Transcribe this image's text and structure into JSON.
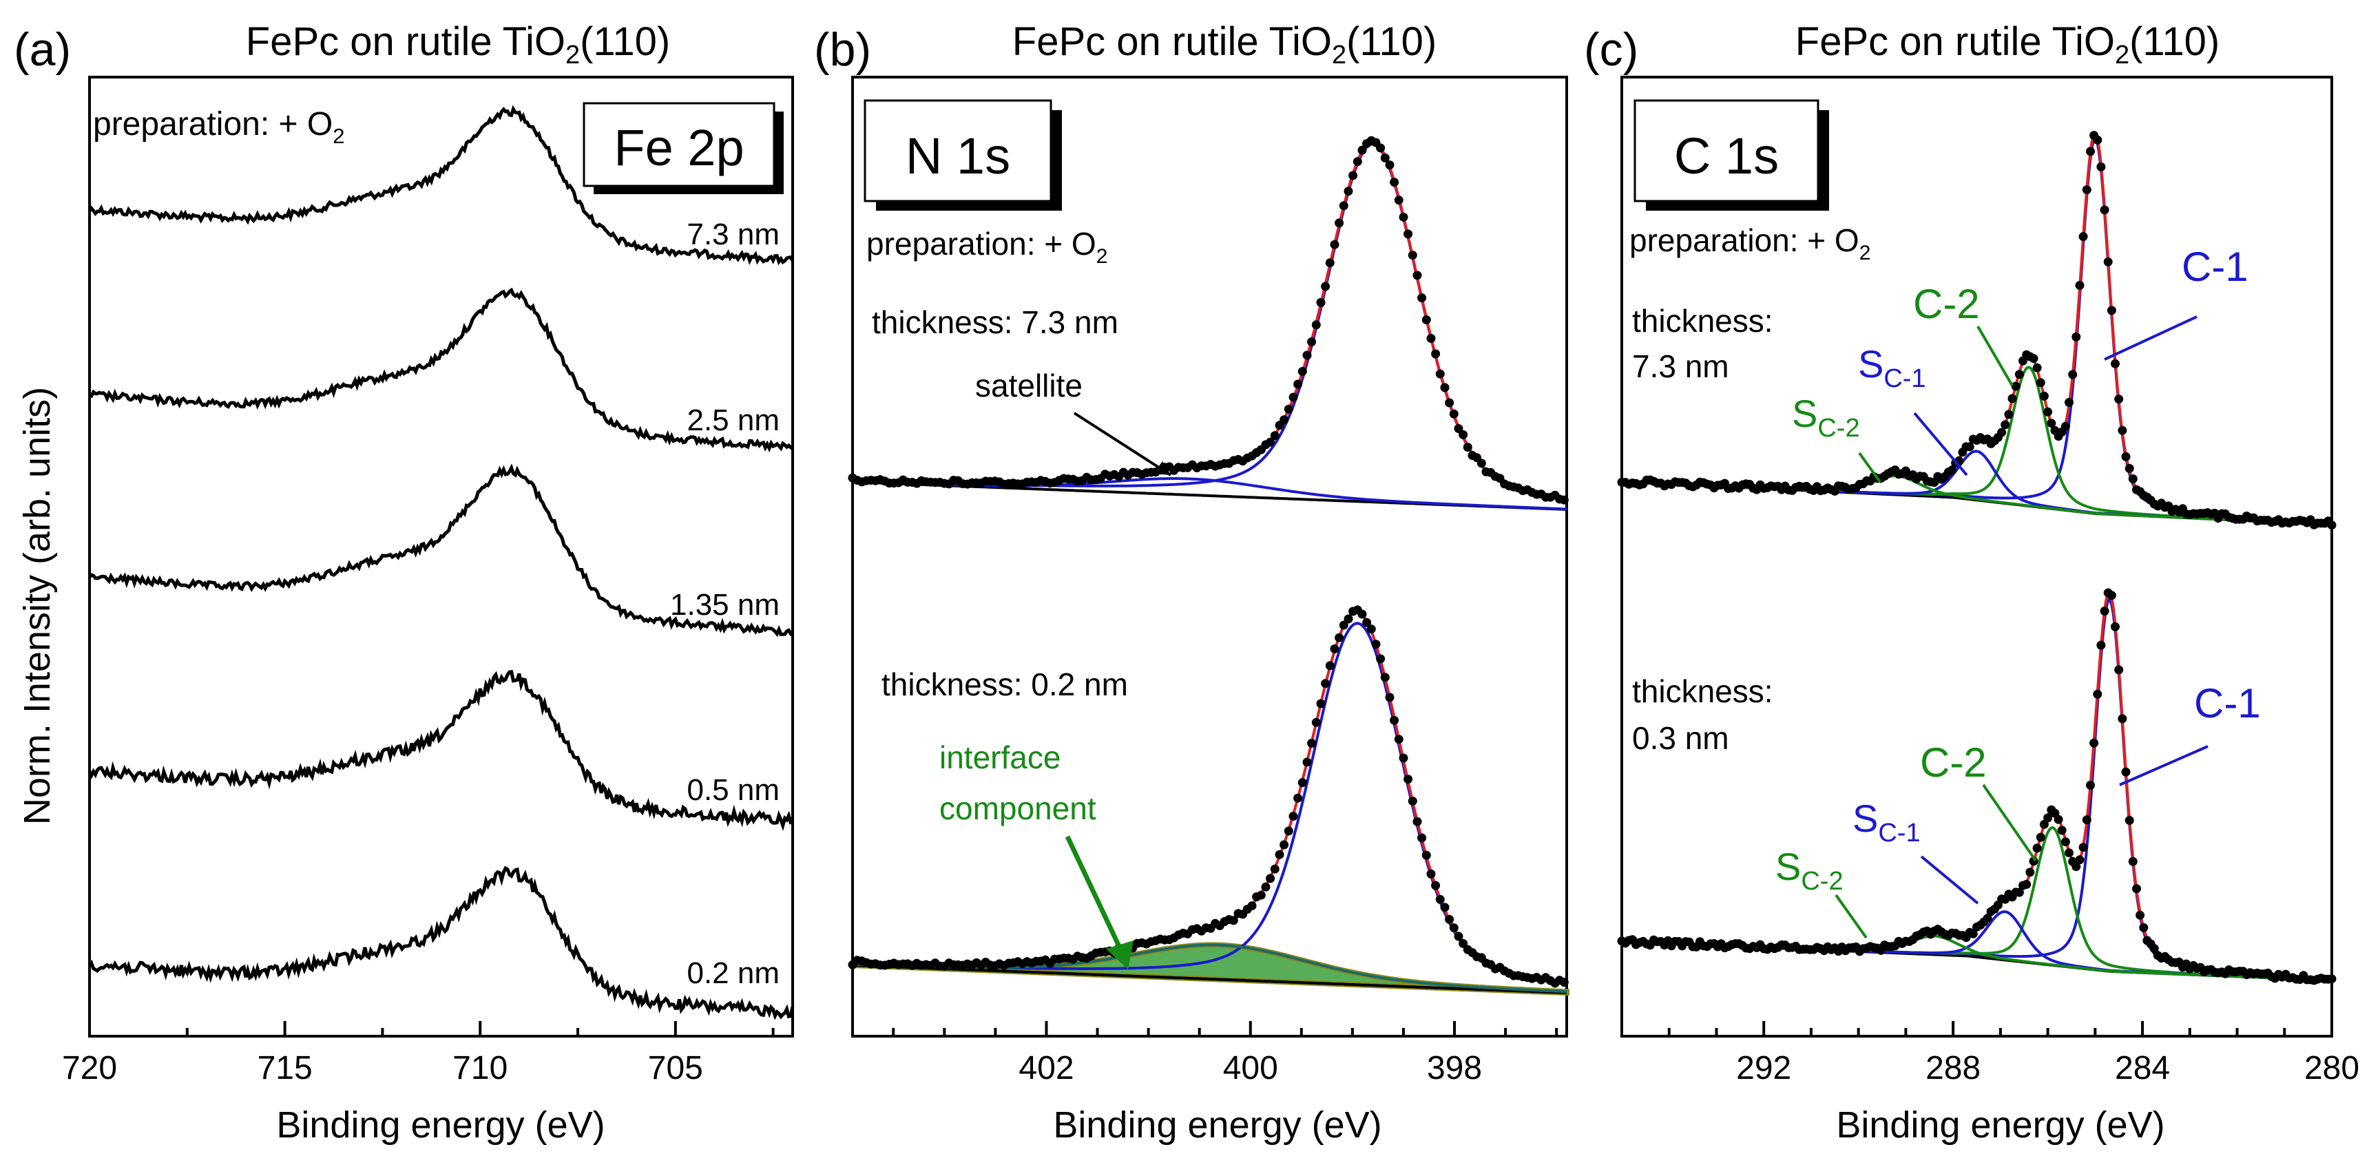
{
  "figure": {
    "ylabel": "Norm. Intensity (arb. units)",
    "xlabel": "Binding energy (eV)"
  },
  "colors": {
    "data": "#000000",
    "fit": "#e02020",
    "blue": "#1a1acc",
    "green": "#158a15",
    "olive": "#8a8a1a"
  },
  "chart_data": [
    {
      "type": "line",
      "panel": "(a)",
      "title": "FePc on rutile TiO2(110)",
      "region_label": "Fe 2p",
      "preparation": "preparation: + O2",
      "xlabel": "Binding energy (eV)",
      "ylabel": "Norm. Intensity (arb. units)",
      "xlim": [
        720,
        702
      ],
      "xticks": [
        720,
        715,
        710,
        705
      ],
      "series": [
        {
          "name": "7.3 nm",
          "offset": 4
        },
        {
          "name": "2.5 nm",
          "offset": 3
        },
        {
          "name": "1.35 nm",
          "offset": 2
        },
        {
          "name": "0.5 nm",
          "offset": 1
        },
        {
          "name": "0.2 nm",
          "offset": 0
        }
      ]
    },
    {
      "type": "line",
      "panel": "(b)",
      "title": "FePc on rutile TiO2(110)",
      "region_label": "N 1s",
      "preparation": "preparation: + O2",
      "xlabel": "Binding energy (eV)",
      "xlim": [
        403.9,
        396.9
      ],
      "xticks": [
        402,
        400,
        398
      ],
      "spectra": [
        {
          "thickness": "thickness: 7.3 nm",
          "main_peak_eV": 398.8,
          "satellite_eV": 400.5,
          "annotation": "satellite"
        },
        {
          "thickness": "thickness: 0.2 nm",
          "main_peak_eV": 398.95,
          "interface_eV": 400.2,
          "annotation": "interface component"
        }
      ]
    },
    {
      "type": "line",
      "panel": "(c)",
      "title": "FePc on rutile TiO2(110)",
      "region_label": "C 1s",
      "preparation": "preparation: + O2",
      "xlabel": "Binding energy (eV)",
      "xlim": [
        295,
        280
      ],
      "xticks": [
        292,
        288,
        284,
        280
      ],
      "components": [
        "C-1",
        "C-2",
        "S",
        "S"
      ],
      "component_subscripts": [
        "C-1",
        "C-2"
      ],
      "spectra": [
        {
          "thickness_line1": "thickness:",
          "thickness_line2": "7.3 nm",
          "C1_eV": 285.0,
          "C2_eV": 286.4,
          "SC1_eV": 287.5,
          "SC2_eV": 289.2
        },
        {
          "thickness_line1": "thickness:",
          "thickness_line2": "0.3 nm",
          "C1_eV": 284.7,
          "C2_eV": 285.9,
          "SC1_eV": 286.9,
          "SC2_eV": 288.4
        }
      ]
    }
  ]
}
